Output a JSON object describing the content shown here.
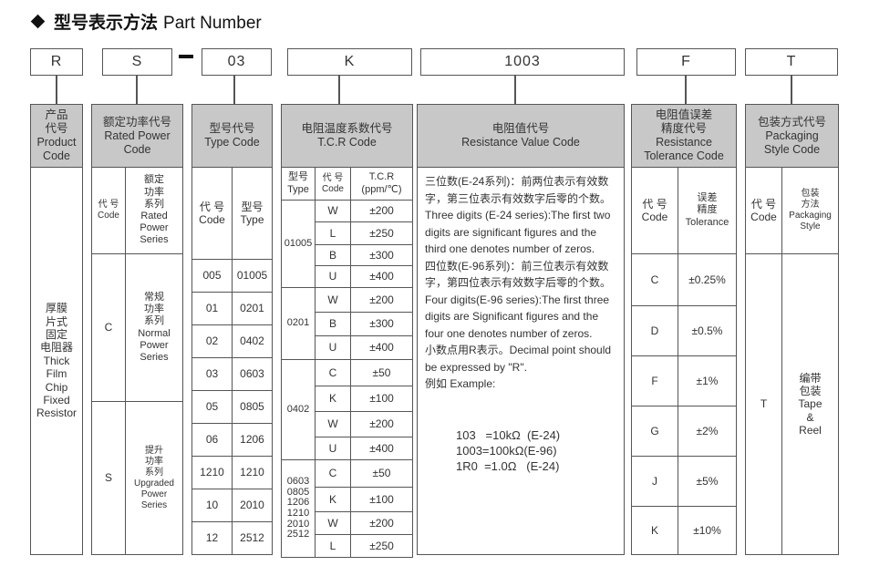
{
  "title": {
    "cn": "型号表示方法",
    "en": "Part Number"
  },
  "codes": [
    "R",
    "S",
    "03",
    "K",
    "1003",
    "F",
    "T"
  ],
  "product": {
    "header": "产品\n代号\nProduct\nCode",
    "body": "厚膜\n片式\n固定\n电阻器\nThick\nFilm\nChip\nFixed\nResistor"
  },
  "power": {
    "header": "额定功率代号\nRated Power\nCode",
    "sub_code": "代 号\nCode",
    "sub_series": "额定\n功率\n系列\nRated\nPower\nSeries",
    "rows": [
      {
        "code": "C",
        "series": "常规\n功率\n系列\nNormal\nPower\nSeries"
      },
      {
        "code": "S",
        "series": "提升\n功率\n系列\nUpgraded\nPower\nSeries"
      }
    ]
  },
  "type": {
    "header": "型号代号\nType Code",
    "sub_code": "代  号\nCode",
    "sub_type": "型号\nType",
    "rows": [
      {
        "code": "005",
        "type": "01005"
      },
      {
        "code": "01",
        "type": "0201"
      },
      {
        "code": "02",
        "type": "0402"
      },
      {
        "code": "03",
        "type": "0603"
      },
      {
        "code": "05",
        "type": "0805"
      },
      {
        "code": "06",
        "type": "1206"
      },
      {
        "code": "1210",
        "type": "1210"
      },
      {
        "code": "10",
        "type": "2010"
      },
      {
        "code": "12",
        "type": "2512"
      }
    ]
  },
  "tcr": {
    "header": "电阻温度系数代号\nT.C.R Code",
    "sub_type": "型号\nType",
    "sub_code": "代 号\nCode",
    "sub_tcr": "T.C.R\n(ppm/℃)",
    "groups": [
      {
        "type": "01005",
        "rows": [
          {
            "code": "W",
            "tcr": "±200"
          },
          {
            "code": "L",
            "tcr": "±250"
          },
          {
            "code": "B",
            "tcr": "±300"
          },
          {
            "code": "U",
            "tcr": "±400"
          }
        ]
      },
      {
        "type": "0201",
        "rows": [
          {
            "code": "W",
            "tcr": "±200"
          },
          {
            "code": "B",
            "tcr": "±300"
          },
          {
            "code": "U",
            "tcr": "±400"
          }
        ]
      },
      {
        "type": "0402",
        "rows": [
          {
            "code": "C",
            "tcr": "±50"
          },
          {
            "code": "K",
            "tcr": "±100"
          },
          {
            "code": "W",
            "tcr": "±200"
          },
          {
            "code": "U",
            "tcr": "±400"
          }
        ]
      },
      {
        "type": "0603\n0805\n1206\n1210\n2010\n2512",
        "rows": [
          {
            "code": "C",
            "tcr": "±50"
          },
          {
            "code": "K",
            "tcr": "±100"
          },
          {
            "code": "W",
            "tcr": "±200"
          },
          {
            "code": "L",
            "tcr": "±250"
          }
        ]
      }
    ]
  },
  "resistance": {
    "header": "电阻值代号\nResistance Value Code",
    "lines": [
      "三位数(E-24系列)：前两位表示有效数字，第三位表示有效数字后零的个数。",
      "Three digits (E-24 series):The first two digits are significant figures and the third one denotes number of zeros.",
      "四位数(E-96系列)：前三位表示有效数字，第四位表示有效数字后零的个数。",
      "Four digits(E-96 series):The first three digits are Significant figures and the four one denotes number of zeros.",
      "小数点用R表示。Decimal point should be expressed by \"R\".",
      "例如 Example:"
    ],
    "examples": [
      "103   =10kΩ  (E-24)",
      "1003=100kΩ(E-96)",
      "1R0  =1.0Ω   (E-24)"
    ]
  },
  "tolerance": {
    "header": "电阻值误差\n精度代号\nResistance\nTolerance Code",
    "sub_code": "代  号\nCode",
    "sub_tol": "误差\n精度\nTolerance",
    "rows": [
      {
        "code": "C",
        "tol": "±0.25%"
      },
      {
        "code": "D",
        "tol": "±0.5%"
      },
      {
        "code": "F",
        "tol": "±1%"
      },
      {
        "code": "G",
        "tol": "±2%"
      },
      {
        "code": "J",
        "tol": "±5%"
      },
      {
        "code": "K",
        "tol": "±10%"
      }
    ]
  },
  "packaging": {
    "header": "包装方式代号\nPackaging\nStyle Code",
    "sub_code": "代 号\nCode",
    "sub_style": "包装\n方法\nPackaging\nStyle",
    "rows": [
      {
        "code": "T",
        "style": "编带\n包装\nTape\n&\nReel"
      }
    ]
  }
}
